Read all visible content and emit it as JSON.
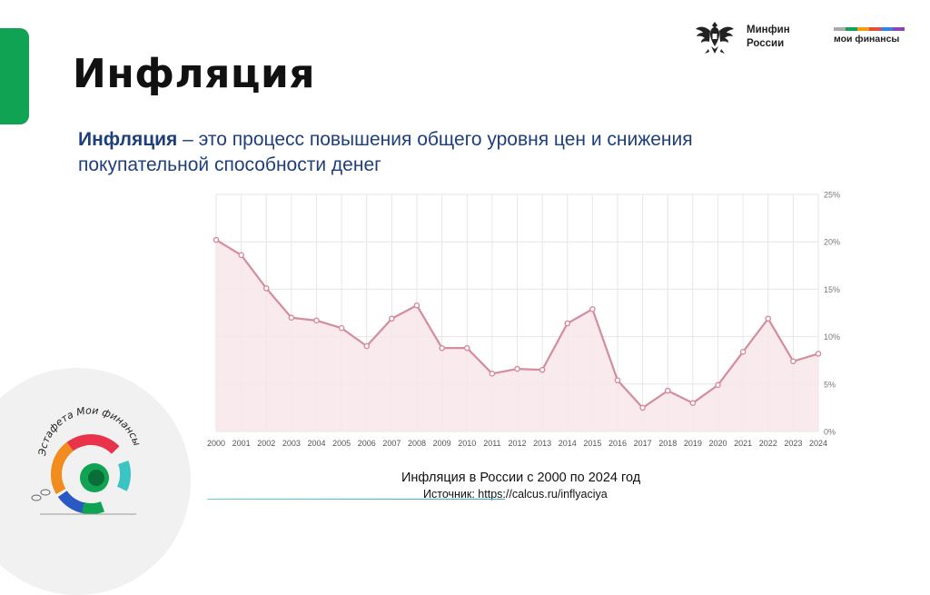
{
  "slide": {
    "title": "Инфляция",
    "definition_term": "Инфляция",
    "definition_rest": " – это процесс повышения общего уровня цен и снижения покупательной способности денег"
  },
  "logos": {
    "minfin_line1": "Минфин",
    "minfin_line2": "России",
    "moi_finansy": "мои финансы",
    "relay_text": "Эстафета Мои финансы"
  },
  "caption": {
    "title": "Инфляция в России с 2000 по 2024 год",
    "source": "Источник: https://calcus.ru/inflyaciya"
  },
  "colors": {
    "accent_green": "#10a354",
    "line": "#d48c9e",
    "area": "#f8e6ea",
    "text_blue": "#1f3f7a"
  },
  "chart_data": {
    "type": "area",
    "x": [
      2000,
      2001,
      2002,
      2003,
      2004,
      2005,
      2006,
      2007,
      2008,
      2009,
      2010,
      2011,
      2012,
      2013,
      2014,
      2015,
      2016,
      2017,
      2018,
      2019,
      2020,
      2021,
      2022,
      2023,
      2024
    ],
    "series": [
      {
        "values": [
          20.2,
          18.6,
          15.1,
          12.0,
          11.7,
          10.9,
          9.0,
          11.9,
          13.3,
          8.8,
          8.8,
          6.1,
          6.6,
          6.5,
          11.4,
          12.9,
          5.4,
          2.5,
          4.3,
          3.0,
          4.9,
          8.4,
          11.9,
          7.4,
          8.2
        ]
      }
    ],
    "yticks": [
      "0%",
      "5%",
      "10%",
      "15%",
      "20%",
      "25%"
    ],
    "ylim": [
      0,
      25
    ],
    "y_axis_side": "right",
    "grid": true,
    "xlabel": "",
    "ylabel": ""
  }
}
